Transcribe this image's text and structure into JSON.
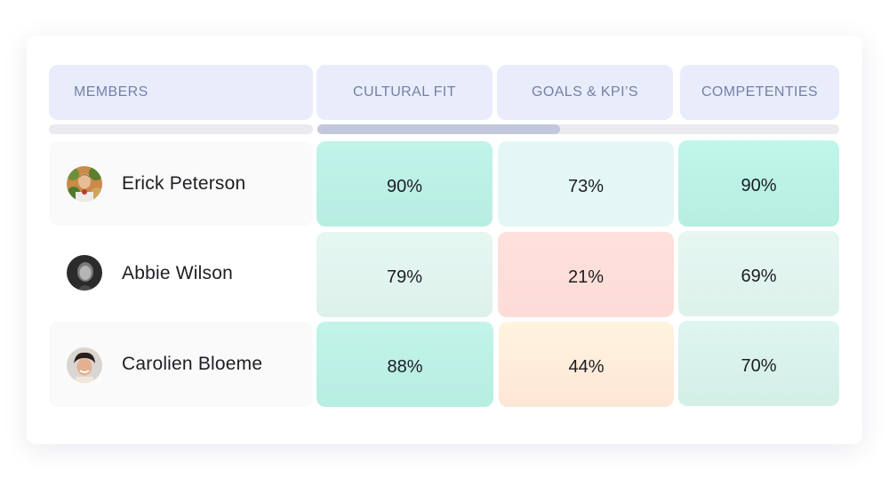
{
  "table": {
    "headers": {
      "members": "MEMBERS",
      "cultural_fit": "CULTURAL FIT",
      "goals_kpis": "GOALS & KPI’S",
      "competencies": "COMPETENTIES"
    },
    "rows": [
      {
        "name": "Erick Peterson",
        "cultural_fit": "90%",
        "goals_kpis": "73%",
        "competencies": "90%"
      },
      {
        "name": "Abbie Wilson",
        "cultural_fit": "79%",
        "goals_kpis": "21%",
        "competencies": "69%"
      },
      {
        "name": "Carolien Bloeme",
        "cultural_fit": "88%",
        "goals_kpis": "44%",
        "competencies": "70%"
      }
    ]
  },
  "scrollbar": {
    "position_fraction": 0.0,
    "visible_fraction": 0.47
  },
  "colors": {
    "header_bg": "#e9edfb",
    "header_text": "#7580a8",
    "high_score": "#bff3e7",
    "mid_score": "#e5f6f2",
    "low_score": "#ffe0db",
    "medium_score": "#fff0dd"
  },
  "icons": {
    "avatar_1": "avatar-erick-icon",
    "avatar_2": "avatar-abbie-icon",
    "avatar_3": "avatar-carolien-icon"
  }
}
